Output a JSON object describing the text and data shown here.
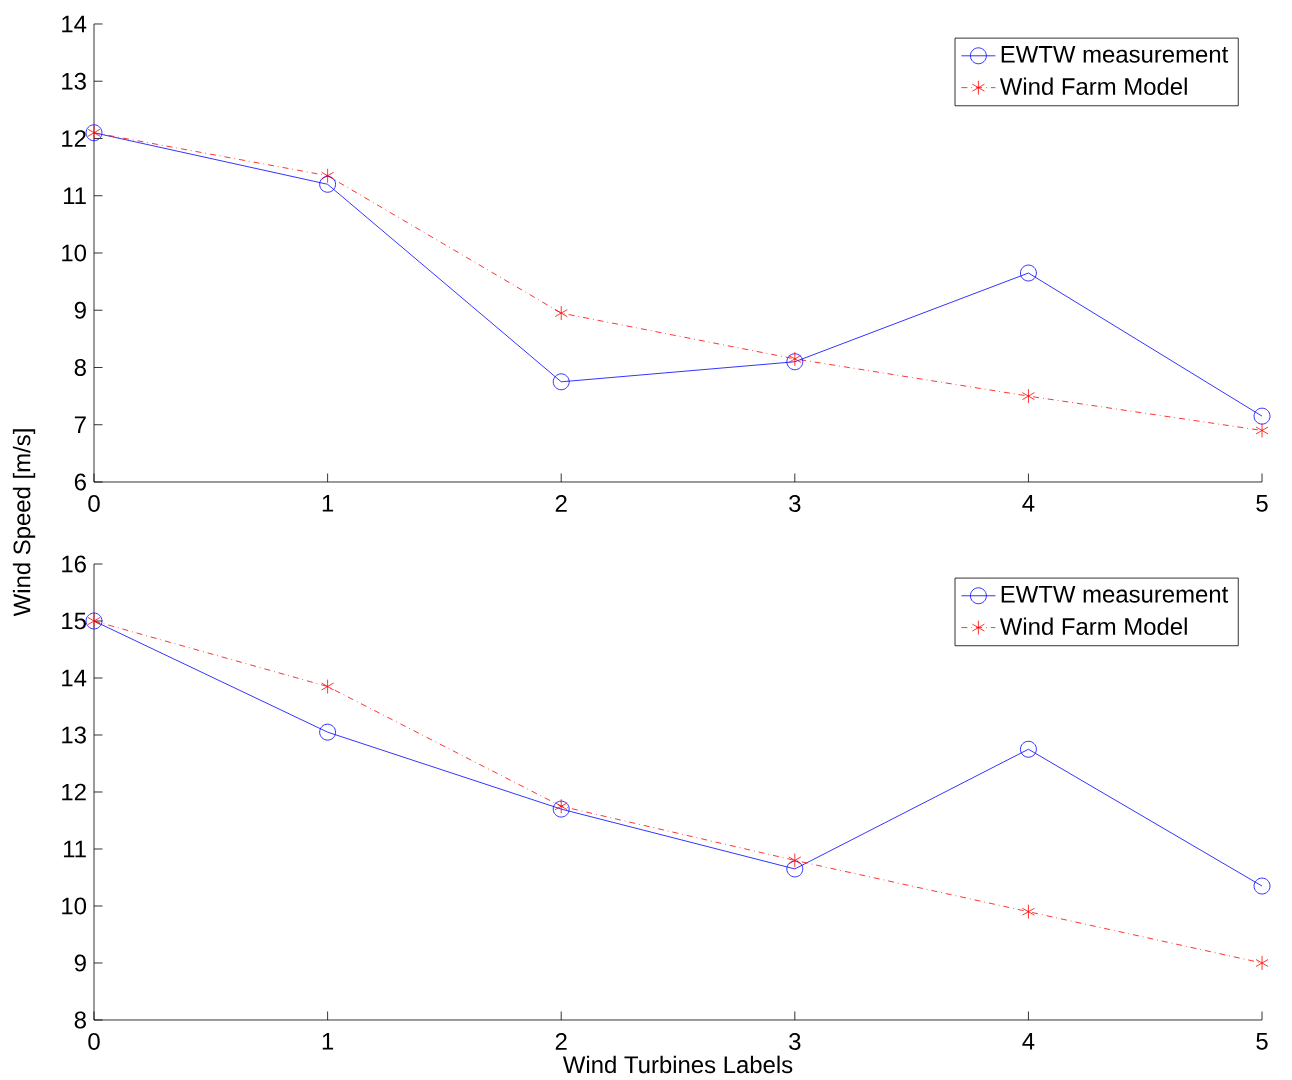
{
  "chart_data": [
    {
      "type": "line",
      "ylabel": "Wind Speed   [m/s]",
      "x": [
        0,
        1,
        2,
        3,
        4,
        5
      ],
      "xlim": [
        0,
        5
      ],
      "xticks": [
        0,
        1,
        2,
        3,
        4,
        5
      ],
      "ylim": [
        6,
        14
      ],
      "yticks": [
        6,
        7,
        8,
        9,
        10,
        11,
        12,
        13,
        14
      ],
      "legend": "top right",
      "grid": false,
      "series": [
        {
          "name": "EWTW measurement",
          "color": "#0000ff",
          "marker": "circle",
          "line_style": "solid",
          "values": [
            12.1,
            11.2,
            7.75,
            8.1,
            9.65,
            7.15
          ]
        },
        {
          "name": "Wind Farm Model",
          "color": "#ff0000",
          "marker": "cross",
          "line_style": "dashdot",
          "values": [
            12.1,
            11.35,
            8.95,
            8.15,
            7.5,
            6.9
          ]
        }
      ]
    },
    {
      "type": "line",
      "xlabel": "Wind Turbines Labels",
      "x": [
        0,
        1,
        2,
        3,
        4,
        5
      ],
      "xlim": [
        0,
        5
      ],
      "xticks": [
        0,
        1,
        2,
        3,
        4,
        5
      ],
      "ylim": [
        8,
        16
      ],
      "yticks": [
        8,
        9,
        10,
        11,
        12,
        13,
        14,
        15,
        16
      ],
      "legend": "top right",
      "grid": false,
      "series": [
        {
          "name": "EWTW measurement",
          "color": "#0000ff",
          "marker": "circle",
          "line_style": "solid",
          "values": [
            15.0,
            13.05,
            11.7,
            10.65,
            12.75,
            10.35
          ]
        },
        {
          "name": "Wind Farm Model",
          "color": "#ff0000",
          "marker": "cross",
          "line_style": "dashdot",
          "values": [
            15.0,
            13.85,
            11.75,
            10.8,
            9.9,
            9.0
          ]
        }
      ]
    }
  ]
}
